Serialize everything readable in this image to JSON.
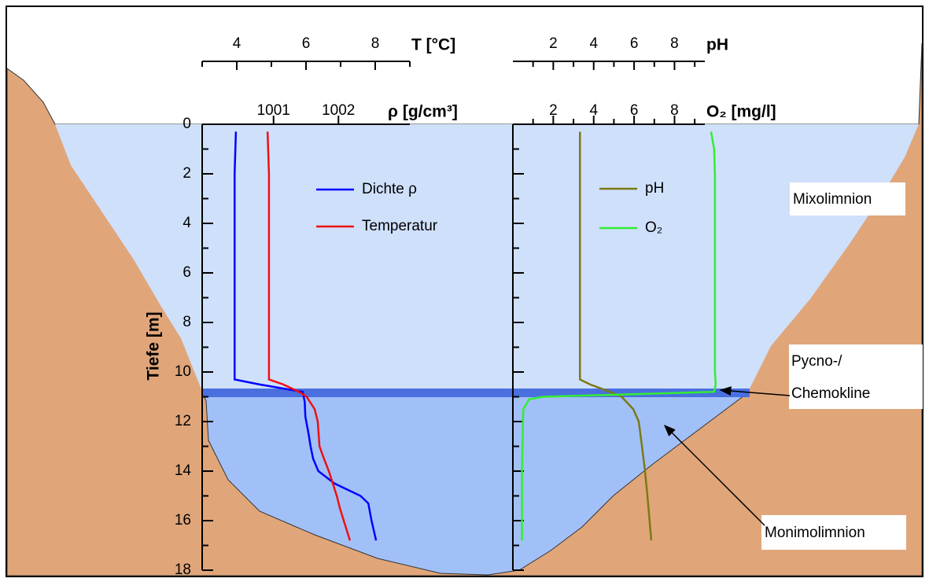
{
  "chart_data": {
    "type": "line",
    "ylabel": "Tiefe [m]",
    "ylim": [
      0,
      18
    ],
    "yticks": [
      0,
      2,
      4,
      6,
      8,
      10,
      12,
      14,
      16,
      18
    ],
    "yminorticks": [
      1,
      3,
      5,
      7,
      9,
      11,
      13,
      15,
      17
    ],
    "xaxes": [
      {
        "label": "T [°C]",
        "xlim": [
          3,
          9
        ],
        "xticks": [
          4,
          6,
          8
        ],
        "xminorticks": [
          3,
          5,
          7,
          9
        ]
      },
      {
        "label": "ρ [g/cm³]",
        "xlim": [
          999.9,
          1003.1
        ],
        "xticks": [
          1001,
          1002
        ]
      },
      {
        "label": "pH",
        "xlim": [
          0,
          9.5
        ],
        "xticks": [
          2,
          4,
          6,
          8
        ],
        "xminorticks": [
          1,
          3,
          5,
          7,
          9
        ]
      },
      {
        "label": "O₂ [mg/l]",
        "xlim": [
          0,
          9.5
        ],
        "xticks": [
          2,
          4,
          6,
          8
        ],
        "xminorticks": [
          1,
          3,
          5,
          7,
          9
        ]
      }
    ],
    "series": [
      {
        "name": "Dichte ρ",
        "color": "#0000ff",
        "xaxis": 1,
        "x": [
          1000.42,
          1000.4,
          1000.4,
          1000.4,
          1000.4,
          1000.4,
          1000.4,
          1000.78,
          1001.45,
          1001.48,
          1001.49,
          1001.54,
          1001.57,
          1001.61,
          1001.69,
          1001.94,
          1002.34,
          1002.46,
          1002.51,
          1002.58
        ],
        "y": [
          0.3,
          2,
          4,
          6,
          8,
          10,
          10.3,
          10.5,
          10.8,
          11.2,
          11.8,
          12.5,
          13,
          13.5,
          14,
          14.5,
          15,
          15.3,
          16,
          16.8
        ]
      },
      {
        "name": "Temperatur",
        "color": "#ee1111",
        "xaxis": 0,
        "x": [
          4.89,
          4.93,
          4.93,
          4.93,
          4.93,
          4.93,
          4.93,
          5.34,
          5.8,
          6.02,
          6.25,
          6.34,
          6.39,
          6.52,
          6.66,
          6.89,
          6.98,
          7.27
        ],
        "y": [
          0.3,
          2,
          4,
          6,
          8,
          10,
          10.3,
          10.5,
          10.8,
          11,
          11.5,
          12,
          13,
          13.5,
          14,
          15,
          15.5,
          16.8
        ]
      },
      {
        "name": "pH",
        "color": "#7b7a14",
        "xaxis": 2,
        "x": [
          3.32,
          3.32,
          3.32,
          3.32,
          3.82,
          4.8,
          5.38,
          5.96,
          6.23,
          6.39,
          6.54,
          6.66,
          6.85
        ],
        "y": [
          0.3,
          4,
          8,
          10.3,
          10.5,
          10.8,
          11,
          11.5,
          12,
          13,
          14,
          15,
          16.8
        ]
      },
      {
        "name": "O₂",
        "color": "#33ee33",
        "xaxis": 3,
        "x": [
          9.81,
          9.96,
          10.0,
          10.0,
          10.0,
          10.04,
          9.96,
          5.77,
          1.5,
          0.8,
          0.52,
          0.5,
          0.45,
          0.45,
          0.45
        ],
        "y": [
          0.3,
          1,
          2,
          6,
          10,
          10.5,
          10.8,
          10.9,
          11,
          11.1,
          11.5,
          12,
          14,
          16,
          16.8
        ]
      }
    ],
    "annotations": [
      "Mixolimnion",
      "Pycno-/",
      "Chemokline",
      "Monimolimnion"
    ]
  }
}
